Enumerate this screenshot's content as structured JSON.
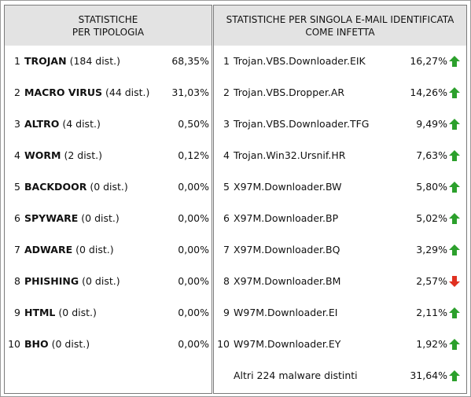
{
  "left": {
    "header": [
      "STATISTICHE",
      "PER TIPOLOGIA"
    ],
    "rows": [
      {
        "num": "1",
        "name": "TROJAN",
        "detail": "(184 dist.)",
        "pct": "68,35%"
      },
      {
        "num": "2",
        "name": "MACRO VIRUS",
        "detail": "(44 dist.)",
        "pct": "31,03%"
      },
      {
        "num": "3",
        "name": "ALTRO",
        "detail": "(4 dist.)",
        "pct": "0,50%"
      },
      {
        "num": "4",
        "name": "WORM",
        "detail": "(2 dist.)",
        "pct": "0,12%"
      },
      {
        "num": "5",
        "name": "BACKDOOR",
        "detail": "(0 dist.)",
        "pct": "0,00%"
      },
      {
        "num": "6",
        "name": "SPYWARE",
        "detail": "(0 dist.)",
        "pct": "0,00%"
      },
      {
        "num": "7",
        "name": "ADWARE",
        "detail": "(0 dist.)",
        "pct": "0,00%"
      },
      {
        "num": "8",
        "name": "PHISHING",
        "detail": "(0 dist.)",
        "pct": "0,00%"
      },
      {
        "num": "9",
        "name": "HTML",
        "detail": "(0 dist.)",
        "pct": "0,00%"
      },
      {
        "num": "10",
        "name": "BHO",
        "detail": "(0 dist.)",
        "pct": "0,00%"
      }
    ]
  },
  "right": {
    "header": [
      "STATISTICHE PER SINGOLA E-MAIL IDENTIFICATA",
      "COME INFETTA"
    ],
    "rows": [
      {
        "num": "1",
        "name": "Trojan.VBS.Downloader.EIK",
        "pct": "16,27%",
        "trend": "up"
      },
      {
        "num": "2",
        "name": "Trojan.VBS.Dropper.AR",
        "pct": "14,26%",
        "trend": "up"
      },
      {
        "num": "3",
        "name": "Trojan.VBS.Downloader.TFG",
        "pct": "9,49%",
        "trend": "up"
      },
      {
        "num": "4",
        "name": "Trojan.Win32.Ursnif.HR",
        "pct": "7,63%",
        "trend": "up"
      },
      {
        "num": "5",
        "name": "X97M.Downloader.BW",
        "pct": "5,80%",
        "trend": "up"
      },
      {
        "num": "6",
        "name": "X97M.Downloader.BP",
        "pct": "5,02%",
        "trend": "up"
      },
      {
        "num": "7",
        "name": "X97M.Downloader.BQ",
        "pct": "3,29%",
        "trend": "up"
      },
      {
        "num": "8",
        "name": "X97M.Downloader.BM",
        "pct": "2,57%",
        "trend": "down"
      },
      {
        "num": "9",
        "name": "W97M.Downloader.EI",
        "pct": "2,11%",
        "trend": "up"
      },
      {
        "num": "10",
        "name": "W97M.Downloader.EY",
        "pct": "1,92%",
        "trend": "up"
      }
    ],
    "footer": {
      "label": "Altri 224 malware distinti",
      "pct": "31,64%",
      "trend": "up"
    }
  }
}
